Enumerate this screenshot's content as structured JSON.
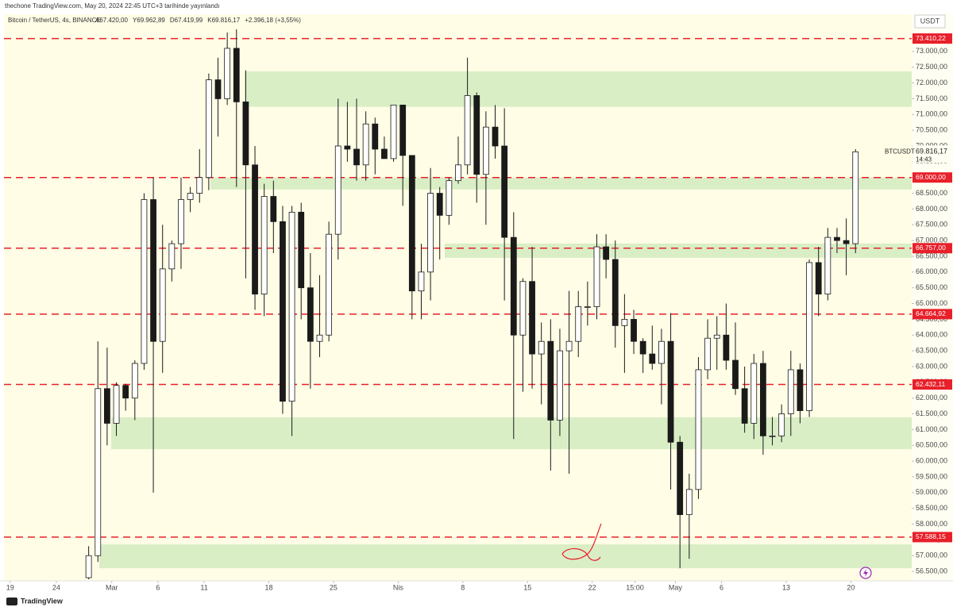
{
  "chart_data": {
    "type": "candlestick",
    "header": "thechone TradingView.com, May 20, 2024 22:45 UTC+3 tarihinde yayınlandı",
    "symbol": "Bitcoin / TetherUS, 4s, BINANCE",
    "ohlc_legend": [
      "A67.420,00",
      "Y69.962,89",
      "D67.419,99",
      "K69.816,17",
      "+2.396,18 (+3,55%)"
    ],
    "currency": "USDT",
    "brand": "TradingView",
    "up_color": "#ffffff",
    "down_color": "#1a1a1a",
    "border_color": "#1a1a1a",
    "x": [
      "02-27",
      "02-28",
      "02-29",
      "03-01",
      "03-02",
      "03-03",
      "03-04",
      "03-05",
      "03-06",
      "03-07",
      "03-08",
      "03-09",
      "03-10",
      "03-11",
      "03-12",
      "03-13",
      "03-14",
      "03-15",
      "03-16",
      "03-17",
      "03-18",
      "03-19",
      "03-20",
      "03-21",
      "03-22",
      "03-23",
      "03-24",
      "03-25",
      "03-26",
      "03-27",
      "03-28",
      "03-29",
      "03-30",
      "03-31",
      "04-01",
      "04-02",
      "04-03",
      "04-04",
      "04-05",
      "04-06",
      "04-07",
      "04-08",
      "04-09",
      "04-10",
      "04-11",
      "04-12",
      "04-13",
      "04-14",
      "04-15",
      "04-16",
      "04-17",
      "04-18",
      "04-19",
      "04-20",
      "04-21",
      "04-22",
      "04-23",
      "04-24",
      "04-25",
      "04-26",
      "04-27",
      "04-28",
      "04-29",
      "04-30",
      "05-01",
      "05-02",
      "05-03",
      "05-04",
      "05-05",
      "05-06",
      "05-07",
      "05-08",
      "05-09",
      "05-10",
      "05-11",
      "05-12",
      "05-13",
      "05-14",
      "05-15",
      "05-16",
      "05-17",
      "05-18",
      "05-19",
      "05-20"
    ],
    "open": [
      56300,
      57000,
      62300,
      61200,
      62400,
      62000,
      63100,
      68300,
      63800,
      66100,
      66900,
      68300,
      68500,
      69000,
      72100,
      71500,
      73100,
      71400,
      69400,
      65300,
      68400,
      67600,
      61900,
      67900,
      65500,
      63800,
      64000,
      67200,
      70000,
      69900,
      69400,
      70700,
      69900,
      69600,
      71300,
      69700,
      65400,
      66000,
      68500,
      67800,
      68900,
      69400,
      71600,
      69100,
      70600,
      70000,
      67100,
      64000,
      65700,
      63400,
      63800,
      61300,
      63500,
      63800,
      64900,
      64900,
      66800,
      66400,
      64300,
      64500,
      63800,
      63400,
      63100,
      63800,
      60600,
      58300,
      59100,
      62900,
      63900,
      64000,
      63200,
      62300,
      61200,
      63100,
      60800,
      60800,
      61500,
      62900,
      61600,
      66300,
      65300,
      67100,
      67000,
      66900
    ],
    "high": [
      57300,
      63800,
      63600,
      62500,
      62450,
      63200,
      68500,
      69000,
      67500,
      67000,
      69000,
      68700,
      69900,
      72300,
      72800,
      73600,
      73700,
      72400,
      70000,
      68800,
      68900,
      68100,
      68100,
      68200,
      66600,
      65900,
      67600,
      71500,
      71400,
      71500,
      71100,
      70900,
      70300,
      71300,
      71300,
      69700,
      66900,
      69300,
      68700,
      69000,
      70300,
      72800,
      71700,
      71100,
      71300,
      71200,
      67900,
      65800,
      66800,
      64400,
      64500,
      64200,
      65400,
      65400,
      65700,
      67200,
      67200,
      67000,
      65300,
      64800,
      63900,
      64300,
      64200,
      64700,
      60800,
      59600,
      63300,
      64500,
      64600,
      65000,
      64400,
      63000,
      63400,
      63500,
      61400,
      61800,
      63500,
      63100,
      66400,
      66800,
      67400,
      67400,
      67700,
      69900
    ],
    "low": [
      56250,
      56800,
      60500,
      60800,
      61600,
      61300,
      62900,
      59000,
      62800,
      65700,
      66100,
      67900,
      68200,
      68600,
      70300,
      71300,
      68700,
      65800,
      64800,
      64600,
      66600,
      61500,
      60800,
      64500,
      62300,
      63300,
      63800,
      66400,
      69500,
      68900,
      68900,
      69100,
      69600,
      69500,
      68100,
      64500,
      64500,
      65100,
      66400,
      67500,
      68800,
      69100,
      68200,
      67500,
      69600,
      65100,
      60700,
      62200,
      62300,
      61800,
      59700,
      60800,
      59600,
      63300,
      64300,
      64500,
      65800,
      63600,
      62800,
      63400,
      62800,
      62900,
      61800,
      59100,
      56600,
      56900,
      58800,
      62600,
      62900,
      62900,
      62100,
      60900,
      60700,
      60200,
      60500,
      60600,
      60800,
      61200,
      61400,
      64600,
      65100,
      66600,
      65900,
      66600
    ],
    "close": [
      57000,
      62300,
      61200,
      62400,
      62000,
      63100,
      68300,
      63800,
      66100,
      66900,
      68300,
      68500,
      69000,
      72100,
      71500,
      73100,
      71400,
      69400,
      65300,
      68400,
      67600,
      61900,
      67900,
      65500,
      63800,
      64000,
      67200,
      70000,
      69900,
      69400,
      70700,
      69900,
      69600,
      71300,
      69700,
      65400,
      66000,
      68500,
      67800,
      68900,
      69400,
      71600,
      69100,
      70600,
      70000,
      67100,
      64000,
      65700,
      63400,
      63800,
      61300,
      63500,
      63800,
      64900,
      64900,
      66800,
      66400,
      64300,
      64500,
      63800,
      63400,
      63100,
      63800,
      60600,
      58300,
      59100,
      62900,
      63900,
      64000,
      63200,
      62300,
      61200,
      63100,
      60800,
      60800,
      61500,
      62900,
      61600,
      66300,
      65300,
      67100,
      67000,
      66900,
      69816.17
    ],
    "xlim": [
      "02-18 08:00",
      "05-26 14:00"
    ],
    "xticks": [
      {
        "value": "02-19",
        "label": "19"
      },
      {
        "value": "02-24",
        "label": "24"
      },
      {
        "value": "03-01",
        "label": "Mar"
      },
      {
        "value": "03-06",
        "label": "6"
      },
      {
        "value": "03-11",
        "label": "11"
      },
      {
        "value": "03-18",
        "label": "18"
      },
      {
        "value": "03-25",
        "label": "25"
      },
      {
        "value": "04-01",
        "label": "Nis"
      },
      {
        "value": "04-08",
        "label": "8"
      },
      {
        "value": "04-15",
        "label": "15"
      },
      {
        "value": "04-22",
        "label": "22"
      },
      {
        "value": "04-26 15:00",
        "label": "15:00"
      },
      {
        "value": "05-01",
        "label": "May"
      },
      {
        "value": "05-06",
        "label": "6"
      },
      {
        "value": "05-13",
        "label": "13"
      },
      {
        "value": "05-20",
        "label": "20"
      }
    ],
    "ylim": [
      56200,
      74180
    ],
    "yticks": [
      {
        "value": 56500,
        "label": "56.500,00"
      },
      {
        "value": 57000,
        "label": "57.000,00"
      },
      {
        "value": 57500,
        "label": "57.500,00"
      },
      {
        "value": 58000,
        "label": "58.000,00"
      },
      {
        "value": 58500,
        "label": "58.500,00"
      },
      {
        "value": 59000,
        "label": "59.000,00"
      },
      {
        "value": 59500,
        "label": "59.500,00"
      },
      {
        "value": 60000,
        "label": "60.000,00"
      },
      {
        "value": 60500,
        "label": "60.500,00"
      },
      {
        "value": 61000,
        "label": "61.000,00"
      },
      {
        "value": 61500,
        "label": "61.500,00"
      },
      {
        "value": 62000,
        "label": "62.000,00"
      },
      {
        "value": 62500,
        "label": "62.500,00"
      },
      {
        "value": 63000,
        "label": "63.000,00"
      },
      {
        "value": 63500,
        "label": "63.500,00"
      },
      {
        "value": 64000,
        "label": "64.000,00"
      },
      {
        "value": 64500,
        "label": "64.500,00"
      },
      {
        "value": 65000,
        "label": "65.000,00"
      },
      {
        "value": 65500,
        "label": "65.500,00"
      },
      {
        "value": 66000,
        "label": "66.000,00"
      },
      {
        "value": 66500,
        "label": "66.500,00"
      },
      {
        "value": 67000,
        "label": "67.000,00"
      },
      {
        "value": 67500,
        "label": "67.500,00"
      },
      {
        "value": 68000,
        "label": "68.000,00"
      },
      {
        "value": 68500,
        "label": "68.500,00"
      },
      {
        "value": 69000,
        "label": "69.000,00"
      },
      {
        "value": 69500,
        "label": "69.500,00"
      },
      {
        "value": 70000,
        "label": "70.000,00"
      },
      {
        "value": 70500,
        "label": "70.500,00"
      },
      {
        "value": 71000,
        "label": "71.000,00"
      },
      {
        "value": 71500,
        "label": "71.500,00"
      },
      {
        "value": 72000,
        "label": "72.000,00"
      },
      {
        "value": 72500,
        "label": "72.500,00"
      },
      {
        "value": 73000,
        "label": "73.000,00"
      }
    ],
    "level_color": "#e8202a",
    "levels": [
      {
        "value": 73410.22,
        "label": "73.410,22"
      },
      {
        "value": 69000,
        "label": "69.000,00"
      },
      {
        "value": 66757,
        "label": "66.757,00"
      },
      {
        "value": 64664.92,
        "label": "64.664,92"
      },
      {
        "value": 62432.11,
        "label": "62.432,11"
      },
      {
        "value": 57588.15,
        "label": "57.588,15"
      }
    ],
    "zone_color": "#d3ebc0",
    "zones": [
      {
        "from": 71240,
        "to": 72370
      },
      {
        "from": 68620,
        "to": 69000
      },
      {
        "from": 66450,
        "to": 66905
      },
      {
        "from": 60380,
        "to": 61390
      },
      {
        "from": 56600,
        "to": 57360
      }
    ],
    "last": {
      "symbol": "BTCUSDT",
      "price": {
        "value": 69816.17,
        "label": "69.816,17"
      },
      "countdown": "14:43"
    }
  }
}
